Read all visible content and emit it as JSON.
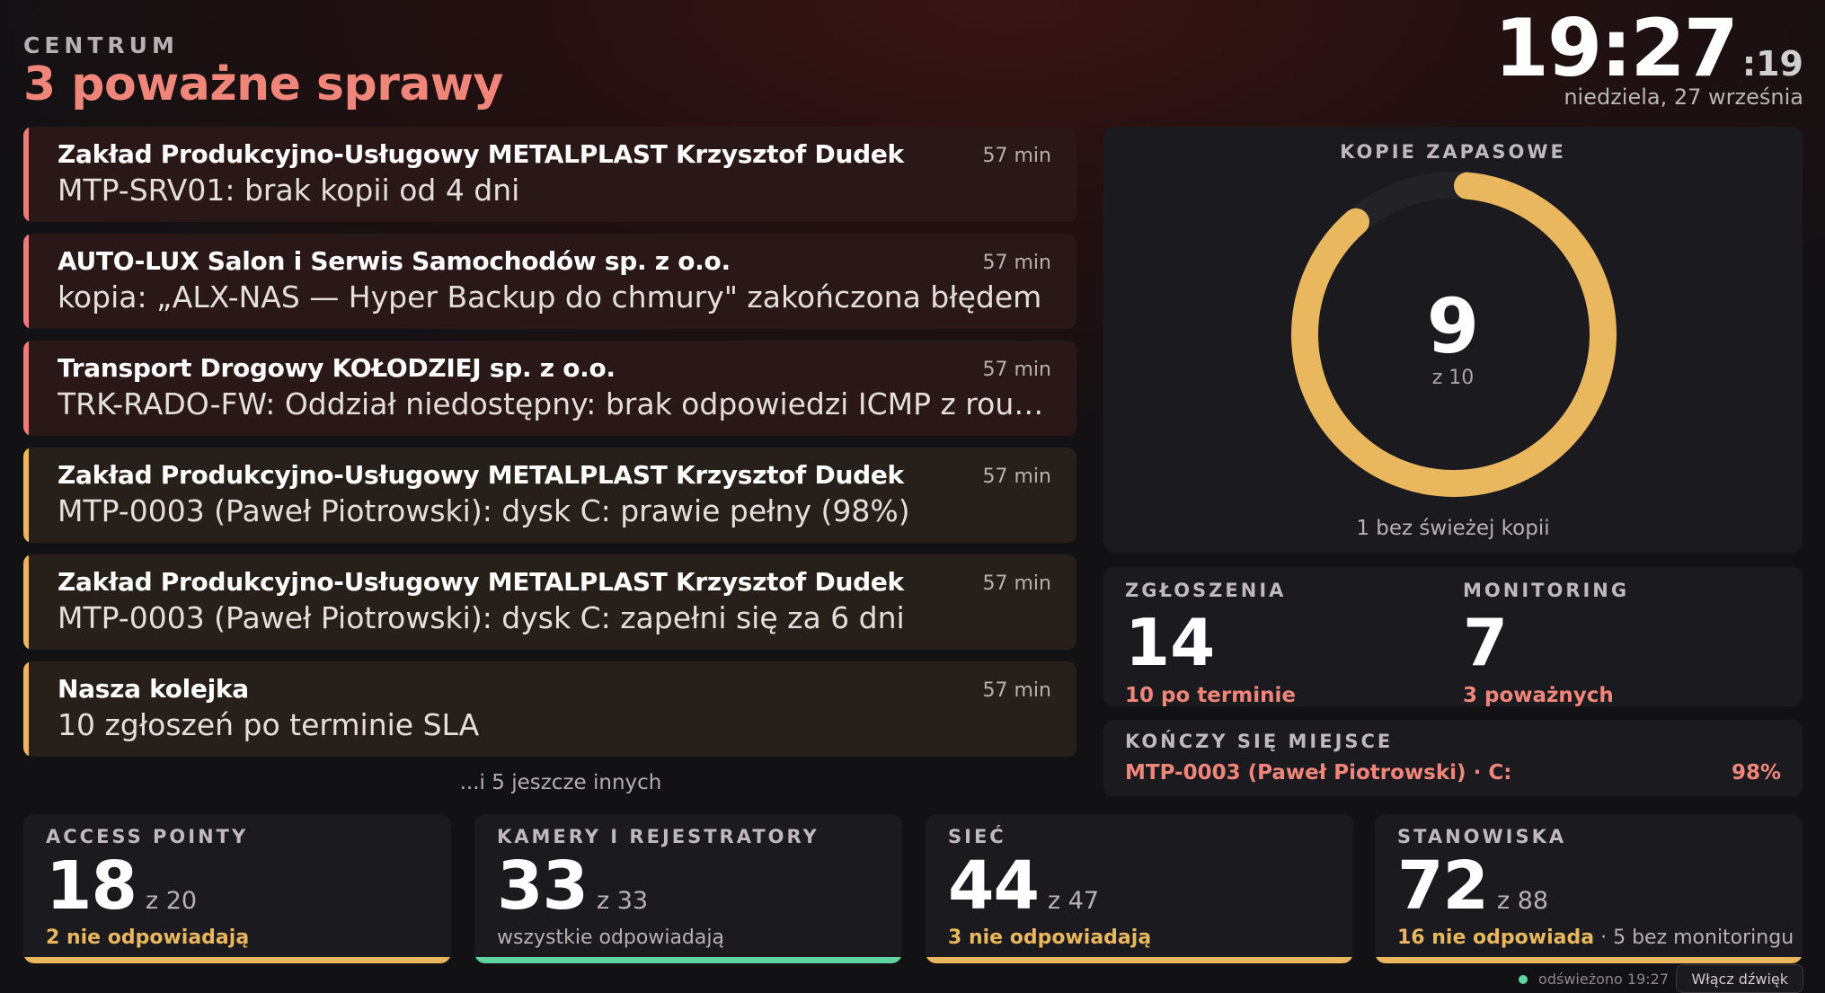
{
  "header": {
    "eyebrow": "CENTRUM",
    "headline": "3 poważne sprawy",
    "clock_main": "19:27",
    "clock_seconds": ":19",
    "date": "niedziela, 27 września"
  },
  "alerts": [
    {
      "severity": "red",
      "title": "Zakład Produkcyjno-Usługowy METALPLAST Krzysztof Dudek",
      "description": "MTP-SRV01: brak kopii od 4 dni",
      "time": "57 min"
    },
    {
      "severity": "red",
      "title": "AUTO-LUX Salon i Serwis Samochodów sp. z o.o.",
      "description": "kopia: „ALX-NAS — Hyper Backup do chmury\" zakończona błędem",
      "time": "57 min"
    },
    {
      "severity": "red",
      "title": "Transport Drogowy KOŁODZIEJ sp. z o.o.",
      "description": "TRK-RADO-FW: Oddział niedostępny: brak odpowiedzi ICMP z rout...",
      "time": "57 min"
    },
    {
      "severity": "amber",
      "title": "Zakład Produkcyjno-Usługowy METALPLAST Krzysztof Dudek",
      "description": "MTP-0003 (Paweł Piotrowski): dysk C: prawie pełny (98%)",
      "time": "57 min"
    },
    {
      "severity": "amber",
      "title": "Zakład Produkcyjno-Usługowy METALPLAST Krzysztof Dudek",
      "description": "MTP-0003 (Paweł Piotrowski): dysk C: zapełni się za 6 dni",
      "time": "57 min"
    },
    {
      "severity": "amber",
      "title": "Nasza kolejka",
      "description": "10 zgłoszeń po terminie SLA",
      "time": "57 min"
    }
  ],
  "alerts_more": "...i 5 jeszcze innych",
  "backup": {
    "title": "KOPIE ZAPASOWE",
    "value": "9",
    "of": "z 10",
    "ok": 9,
    "total": 10,
    "note": "1 bez świeżej kopii",
    "color": "#e8b75e"
  },
  "tickets": {
    "label": "ZGŁOSZENIA",
    "value": "14",
    "sub": "10 po terminie"
  },
  "monitoring": {
    "label": "MONITORING",
    "value": "7",
    "sub": "3 poważnych"
  },
  "space": {
    "label": "KOŃCZY SIĘ MIEJSCE",
    "item": "MTP-0003 (Paweł Piotrowski) · C:",
    "percent": "98%"
  },
  "tiles": [
    {
      "label": "ACCESS POINTY",
      "value": "18",
      "of": "z 20",
      "sub": "2 nie odpowiadają",
      "extra": "",
      "status": "amber"
    },
    {
      "label": "KAMERY I REJESTRATORY",
      "value": "33",
      "of": "z 33",
      "sub": "wszystkie odpowiadają",
      "extra": "",
      "status": "green"
    },
    {
      "label": "SIEĆ",
      "value": "44",
      "of": "z 47",
      "sub": "3 nie odpowiadają",
      "extra": "",
      "status": "amber"
    },
    {
      "label": "STANOWISKA",
      "value": "72",
      "of": "z 88",
      "sub": "16 nie odpowiada",
      "extra": " · 5 bez monitoringu",
      "status": "amber"
    }
  ],
  "footer": {
    "refreshed": "odświeżono 19:27",
    "sound_button": "Włącz dźwięk"
  },
  "colors": {
    "red": "#ee7b77",
    "amber": "#e8b75e",
    "green": "#5fd3a0"
  }
}
